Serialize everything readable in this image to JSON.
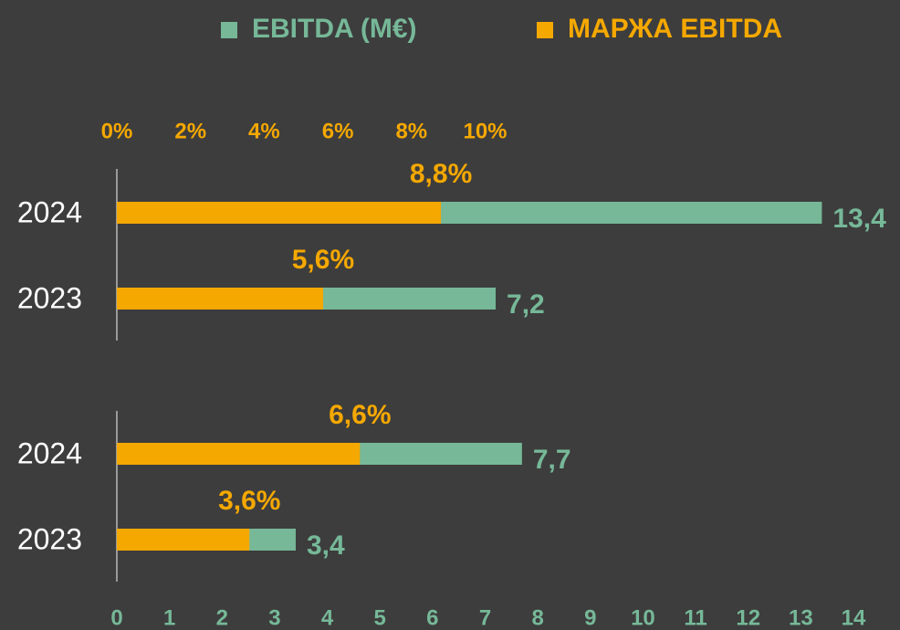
{
  "chart_data": {
    "type": "bar",
    "categories": [
      "2024",
      "2023",
      "2024",
      "2023"
    ],
    "series": [
      {
        "name": "EBITDA (M€)",
        "color": "#76b898",
        "values": [
          13.4,
          7.2,
          7.7,
          3.4
        ],
        "value_labels": [
          "13,4",
          "7,2",
          "7,7",
          "3,4"
        ]
      },
      {
        "name": "МАРЖА EBITDA",
        "color": "#f5a800",
        "axis": "x2",
        "values": [
          8.8,
          5.6,
          6.6,
          3.6
        ],
        "value_labels": [
          "8,8%",
          "5,6%",
          "6,6%",
          "3,6%"
        ]
      }
    ],
    "xlim": [
      0,
      14
    ],
    "xticks": [
      0,
      1,
      2,
      3,
      4,
      5,
      6,
      7,
      8,
      9,
      10,
      11,
      12,
      13,
      14
    ],
    "x2lim": [
      0,
      20
    ],
    "x2ticks": [
      {
        "value": 0,
        "label": "0%"
      },
      {
        "value": 2,
        "label": "2%"
      },
      {
        "value": 4,
        "label": "4%"
      },
      {
        "value": 6,
        "label": "6%"
      },
      {
        "value": 8,
        "label": "8%"
      },
      {
        "value": 10,
        "label": "10%"
      }
    ],
    "legend": "top"
  }
}
